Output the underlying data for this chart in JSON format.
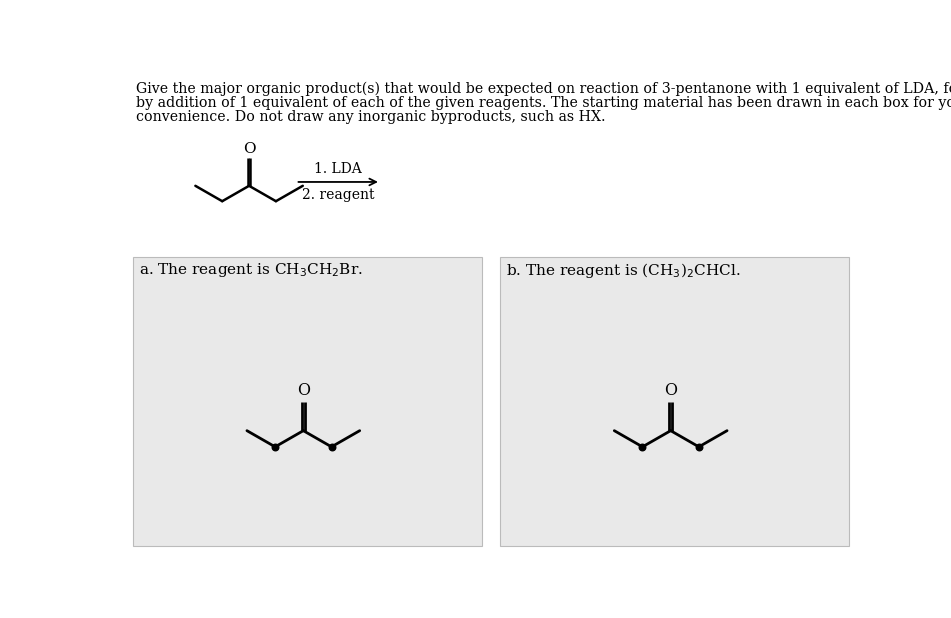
{
  "title_line1": "Give the major organic product(s) that would be expected on reaction of 3-pentanone with 1 equivalent of LDA, followed",
  "title_line2": "by addition of 1 equivalent of each of the given reagents. The starting material has been drawn in each box for your",
  "title_line3": "convenience. Do not draw any inorganic byproducts, such as HX.",
  "background_color": "#ffffff",
  "box_bg_color": "#e9e9e9",
  "box_border_color": "#bbbbbb",
  "reagent_a_label_parts": [
    "a. The reagent is CH",
    "3",
    "CH",
    "2",
    "Br."
  ],
  "reagent_b_label_parts": [
    "b. The reagent is (CH",
    "3",
    ")",
    "2",
    "CHCl."
  ],
  "arrow_label_top": "1. LDA",
  "arrow_label_bot": "2. reagent",
  "fig_width": 9.51,
  "fig_height": 6.18,
  "dpi": 100
}
